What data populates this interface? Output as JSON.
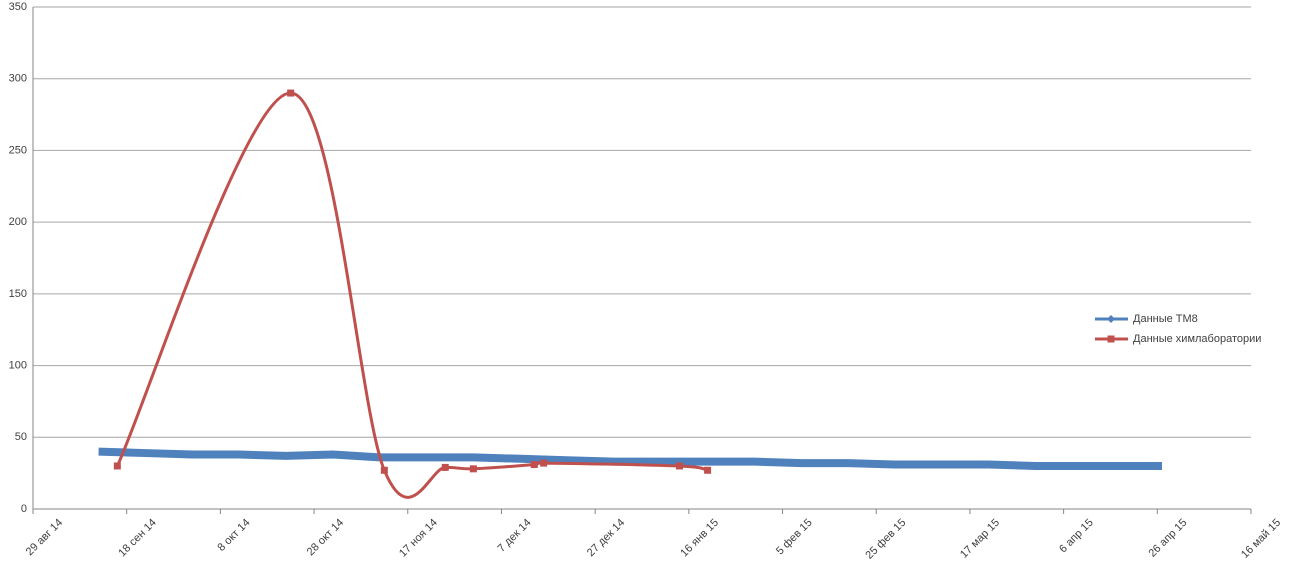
{
  "chart_data": {
    "type": "line",
    "xlim": [
      "2014-08-29",
      "2015-05-16"
    ],
    "xticks": [
      {
        "value": "2014-08-29",
        "label": "29 авг 14"
      },
      {
        "value": "2014-09-18",
        "label": "18 сен 14"
      },
      {
        "value": "2014-10-08",
        "label": "8 окт 14"
      },
      {
        "value": "2014-10-28",
        "label": "28 окт 14"
      },
      {
        "value": "2014-11-17",
        "label": "17 ноя 14"
      },
      {
        "value": "2014-12-07",
        "label": "7 дек 14"
      },
      {
        "value": "2014-12-27",
        "label": "27 дек 14"
      },
      {
        "value": "2015-01-16",
        "label": "16 янв 15"
      },
      {
        "value": "2015-02-05",
        "label": "5 фев 15"
      },
      {
        "value": "2015-02-25",
        "label": "25 фев 15"
      },
      {
        "value": "2015-03-17",
        "label": "17 мар 15"
      },
      {
        "value": "2015-04-06",
        "label": "6 апр 15"
      },
      {
        "value": "2015-04-26",
        "label": "26 апр 15"
      },
      {
        "value": "2015-05-16",
        "label": "16 май 15"
      }
    ],
    "ylim": [
      0,
      350
    ],
    "yticks": [
      0,
      50,
      100,
      150,
      200,
      250,
      300,
      350
    ],
    "grid": true,
    "legend": "right",
    "series": [
      {
        "name": "Данные ТМ8",
        "color": "#4f81bd",
        "marker": "diamond",
        "x": [
          "2014-09-12",
          "2014-09-22",
          "2014-10-02",
          "2014-10-12",
          "2014-10-22",
          "2014-11-01",
          "2014-11-11",
          "2014-11-21",
          "2014-12-01",
          "2014-12-11",
          "2014-12-21",
          "2014-12-31",
          "2015-01-10",
          "2015-01-20",
          "2015-01-30",
          "2015-02-09",
          "2015-02-19",
          "2015-03-01",
          "2015-03-11",
          "2015-03-21",
          "2015-03-31",
          "2015-04-10",
          "2015-04-20",
          "2015-04-27"
        ],
        "values": [
          40,
          39,
          38,
          38,
          37,
          38,
          36,
          36,
          36,
          35,
          34,
          33,
          33,
          33,
          33,
          32,
          32,
          31,
          31,
          31,
          30,
          30,
          30,
          30
        ]
      },
      {
        "name": "Данные химлаборатории",
        "color": "#c0504d",
        "marker": "square",
        "smooth": true,
        "x": [
          "2014-09-16",
          "2014-10-23",
          "2014-11-12",
          "2014-11-25",
          "2014-12-01",
          "2014-12-14",
          "2014-12-16",
          "2015-01-14",
          "2015-01-20"
        ],
        "values": [
          30,
          290,
          27,
          29,
          28,
          31,
          32,
          30,
          27
        ]
      }
    ]
  }
}
